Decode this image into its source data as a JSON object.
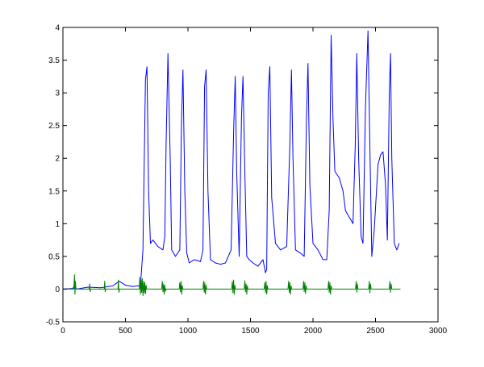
{
  "chart_data": {
    "type": "line",
    "title": "",
    "xlabel": "",
    "ylabel": "",
    "xlim": [
      0,
      3000
    ],
    "ylim": [
      -0.5,
      4
    ],
    "xticks": [
      0,
      500,
      1000,
      1500,
      2000,
      2500,
      3000
    ],
    "yticks": [
      -0.5,
      0,
      0.5,
      1,
      1.5,
      2,
      2.5,
      3,
      3.5,
      4
    ],
    "xtick_labels": [
      "0",
      "500",
      "1000",
      "1500",
      "2000",
      "2500",
      "3000"
    ],
    "ytick_labels": [
      "-0.5",
      "0",
      "0.5",
      "1",
      "1.5",
      "2",
      "2.5",
      "3",
      "3.5",
      "4"
    ],
    "grid": false,
    "legend": "none",
    "series": [
      {
        "color": "#0000ff",
        "x": [
          0,
          80,
          90,
          110,
          200,
          300,
          400,
          450,
          500,
          560,
          600,
          620,
          640,
          660,
          672,
          685,
          700,
          720,
          760,
          800,
          815,
          825,
          840,
          858,
          870,
          900,
          935,
          948,
          960,
          975,
          990,
          1010,
          1050,
          1100,
          1120,
          1133,
          1145,
          1160,
          1180,
          1220,
          1260,
          1300,
          1345,
          1365,
          1378,
          1390,
          1410,
          1428,
          1440,
          1455,
          1470,
          1490,
          1520,
          1560,
          1600,
          1620,
          1630,
          1642,
          1655,
          1670,
          1700,
          1740,
          1790,
          1815,
          1828,
          1840,
          1860,
          1900,
          1930,
          1948,
          1960,
          1975,
          2000,
          2040,
          2080,
          2110,
          2130,
          2145,
          2160,
          2175,
          2210,
          2240,
          2260,
          2290,
          2320,
          2338,
          2350,
          2365,
          2385,
          2400,
          2420,
          2440,
          2455,
          2470,
          2490,
          2520,
          2540,
          2560,
          2580,
          2595,
          2610,
          2620,
          2630,
          2650,
          2670,
          2690
        ],
        "y": [
          0,
          0.01,
          0.05,
          0,
          0.03,
          0.02,
          0.05,
          0.12,
          0.06,
          0.04,
          0.05,
          0.05,
          0.6,
          3.2,
          3.4,
          1.5,
          0.7,
          0.75,
          0.65,
          0.6,
          0.8,
          2.2,
          3.6,
          2.0,
          0.6,
          0.5,
          0.6,
          2.5,
          3.35,
          1.5,
          0.55,
          0.4,
          0.45,
          0.42,
          0.6,
          3.1,
          3.35,
          1.5,
          0.45,
          0.4,
          0.38,
          0.4,
          0.6,
          2.4,
          3.25,
          1.8,
          0.5,
          2.6,
          3.25,
          1.8,
          0.5,
          0.45,
          0.4,
          0.35,
          0.45,
          0.25,
          0.3,
          3.0,
          3.4,
          1.4,
          0.7,
          0.6,
          0.65,
          2.2,
          3.35,
          2.0,
          0.6,
          0.55,
          0.5,
          2.6,
          3.45,
          1.6,
          0.7,
          0.6,
          0.45,
          0.45,
          1.2,
          3.88,
          2.6,
          1.8,
          1.7,
          1.5,
          1.2,
          1.1,
          1.0,
          2.2,
          3.6,
          2.0,
          0.8,
          0.7,
          2.8,
          3.95,
          2.2,
          0.5,
          0.9,
          1.9,
          2.05,
          2.1,
          1.6,
          0.75,
          3.0,
          3.6,
          2.0,
          0.7,
          0.6,
          0.7
        ]
      },
      {
        "color": "#008000",
        "x": [
          0,
          88,
          92,
          96,
          100,
          104,
          210,
          214,
          218,
          222,
          330,
          334,
          338,
          342,
          440,
          444,
          448,
          452,
          610,
          615,
          620,
          625,
          630,
          635,
          640,
          645,
          650,
          655,
          660,
          665,
          670,
          790,
          795,
          800,
          805,
          810,
          815,
          820,
          825,
          930,
          935,
          940,
          945,
          950,
          955,
          960,
          1120,
          1125,
          1130,
          1135,
          1140,
          1145,
          1150,
          1350,
          1355,
          1360,
          1365,
          1370,
          1375,
          1380,
          1450,
          1455,
          1460,
          1465,
          1470,
          1475,
          1480,
          1610,
          1615,
          1620,
          1625,
          1630,
          1635,
          1640,
          1800,
          1805,
          1810,
          1815,
          1820,
          1825,
          1830,
          1920,
          1925,
          1930,
          1935,
          1940,
          1945,
          1950,
          2120,
          2125,
          2130,
          2135,
          2140,
          2145,
          2150,
          2340,
          2345,
          2350,
          2355,
          2360,
          2445,
          2450,
          2455,
          2460,
          2465,
          2610,
          2615,
          2620,
          2625,
          2630,
          2700
        ],
        "y": [
          0,
          0,
          0.22,
          -0.08,
          0.12,
          0,
          0,
          0.08,
          -0.04,
          0,
          0,
          0.12,
          -0.04,
          0,
          0,
          0.14,
          -0.05,
          0,
          0,
          0.18,
          -0.08,
          0.15,
          -0.05,
          0.16,
          -0.1,
          0.12,
          -0.06,
          0.1,
          -0.07,
          0.06,
          0,
          0,
          0.12,
          -0.04,
          0.08,
          -0.08,
          0.06,
          -0.03,
          0,
          0,
          0.1,
          -0.04,
          0.12,
          -0.08,
          0.05,
          0,
          0,
          0.12,
          -0.05,
          0.1,
          -0.08,
          0.06,
          0,
          0,
          0.12,
          -0.06,
          0.14,
          -0.08,
          0.06,
          0,
          0,
          0.13,
          -0.04,
          0.08,
          -0.08,
          0.05,
          0,
          0,
          0.1,
          -0.05,
          0.12,
          -0.08,
          0.05,
          0,
          0,
          0.12,
          -0.05,
          0.1,
          -0.08,
          0.05,
          0,
          0,
          0.12,
          -0.04,
          0.1,
          -0.07,
          0.05,
          0,
          0,
          0.12,
          -0.05,
          0.1,
          -0.08,
          0.05,
          0,
          0,
          0.12,
          -0.05,
          0.08,
          0,
          0,
          0.12,
          -0.06,
          0.08,
          0,
          0,
          0.12,
          -0.05,
          0.08,
          0,
          0
        ]
      }
    ]
  }
}
